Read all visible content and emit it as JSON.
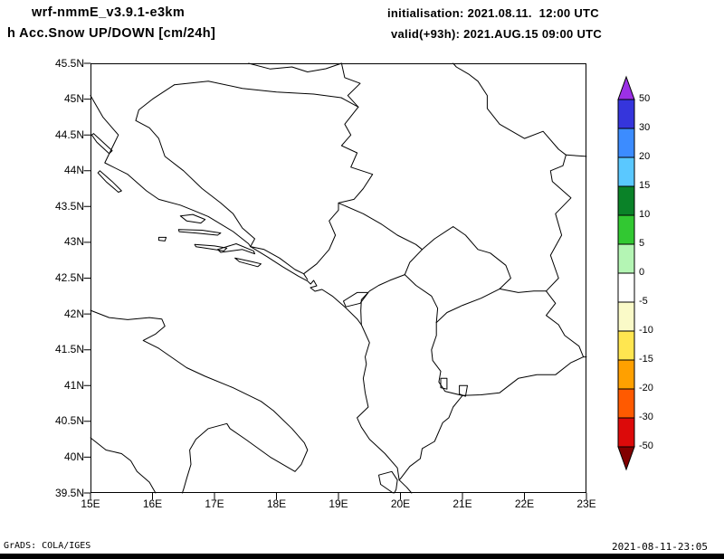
{
  "header": {
    "model": "wrf-nmmE_v3.9.1-e3km",
    "product": "h Acc.Snow UP/DOWN [cm/24h]",
    "init_label": "initialisation: 2021.08.11.  12:00 UTC",
    "valid_label": "valid(+93h): 2021.AUG.15 09:00 UTC"
  },
  "map": {
    "lat_range": [
      39.5,
      45.5
    ],
    "lon_range": [
      15,
      23
    ],
    "lat_ticks": [
      {
        "value": 45.5,
        "label": "45.5N"
      },
      {
        "value": 45.0,
        "label": "45N"
      },
      {
        "value": 44.5,
        "label": "44.5N"
      },
      {
        "value": 44.0,
        "label": "44N"
      },
      {
        "value": 43.5,
        "label": "43.5N"
      },
      {
        "value": 43.0,
        "label": "43N"
      },
      {
        "value": 42.5,
        "label": "42.5N"
      },
      {
        "value": 42.0,
        "label": "42N"
      },
      {
        "value": 41.5,
        "label": "41.5N"
      },
      {
        "value": 41.0,
        "label": "41N"
      },
      {
        "value": 40.5,
        "label": "40.5N"
      },
      {
        "value": 40.0,
        "label": "40N"
      },
      {
        "value": 39.5,
        "label": "39.5N"
      }
    ],
    "lon_ticks": [
      {
        "value": 15,
        "label": "15E"
      },
      {
        "value": 16,
        "label": "16E"
      },
      {
        "value": 17,
        "label": "17E"
      },
      {
        "value": 18,
        "label": "18E"
      },
      {
        "value": 19,
        "label": "19E"
      },
      {
        "value": 20,
        "label": "20E"
      },
      {
        "value": 21,
        "label": "21E"
      },
      {
        "value": 22,
        "label": "22E"
      },
      {
        "value": 23,
        "label": "23E"
      }
    ]
  },
  "colorbar": {
    "tick_labels": [
      "50",
      "30",
      "20",
      "15",
      "10",
      "5",
      "0",
      "-5",
      "-10",
      "-15",
      "-20",
      "-30",
      "-50"
    ],
    "colors_top_to_bottom": [
      "#9B30E6",
      "#3535DC",
      "#3C8CFF",
      "#5AC8FF",
      "#0A8228",
      "#32C832",
      "#B4F5B4",
      "#FFFFFF",
      "#FAFAC8",
      "#FFE650",
      "#FFA000",
      "#FF5A00",
      "#DC0A0A",
      "#820000"
    ]
  },
  "footer": {
    "left": "GrADS: COLA/IGES",
    "right": "2021-08-11-23:05"
  }
}
